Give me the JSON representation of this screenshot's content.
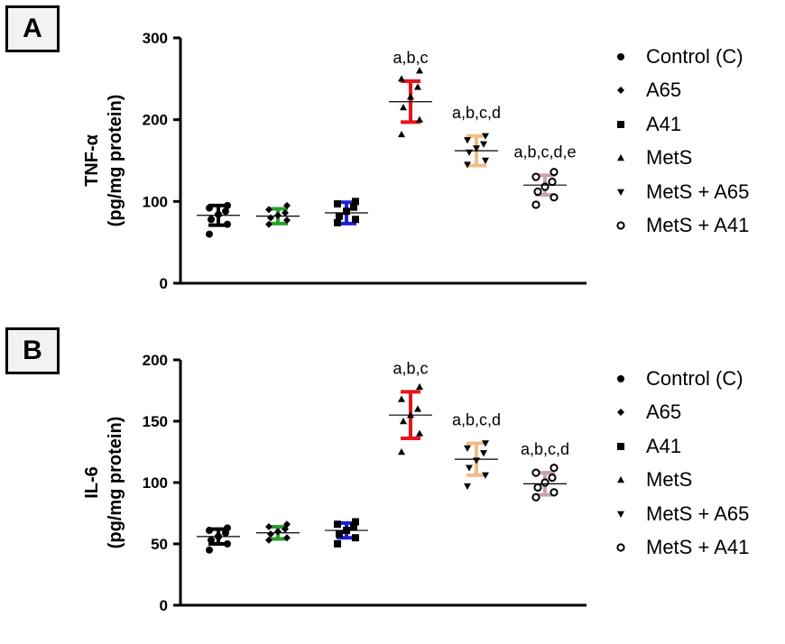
{
  "colors": {
    "control": "#000000",
    "a65": "#2ca02c",
    "a41": "#1f1fd6",
    "mets": "#e8141b",
    "mets_a65": "#f2bb87",
    "mets_a41": "#c9a2ad"
  },
  "legend": [
    {
      "label": "Control (C)",
      "marker": "circle"
    },
    {
      "label": "A65",
      "marker": "diamond"
    },
    {
      "label": "A41",
      "marker": "square"
    },
    {
      "label": "MetS",
      "marker": "triangle-up"
    },
    {
      "label": "MetS + A65",
      "marker": "triangle-down"
    },
    {
      "label": "MetS + A41",
      "marker": "open-circle"
    }
  ],
  "chart_data": [
    {
      "type": "scatter",
      "panel": "A",
      "ylabel_line1": "TNF-α",
      "ylabel_line2": "(pg/mg protein)",
      "ylim": [
        0,
        300
      ],
      "yticks": [
        0,
        100,
        200,
        300
      ],
      "groups": [
        {
          "name": "Control (C)",
          "points": [
            60,
            72,
            78,
            84,
            88,
            92,
            95
          ],
          "mean": 83,
          "sd": 12,
          "annotation": ""
        },
        {
          "name": "A65",
          "points": [
            72,
            77,
            80,
            83,
            86,
            90,
            95
          ],
          "mean": 82,
          "sd": 9,
          "annotation": ""
        },
        {
          "name": "A41",
          "points": [
            74,
            78,
            82,
            88,
            93,
            97,
            100
          ],
          "mean": 86,
          "sd": 13,
          "annotation": ""
        },
        {
          "name": "MetS",
          "points": [
            182,
            200,
            215,
            228,
            240,
            250,
            260
          ],
          "mean": 222,
          "sd": 25,
          "annotation": "a,b,c"
        },
        {
          "name": "MetS + A65",
          "points": [
            145,
            150,
            160,
            165,
            170,
            175,
            180
          ],
          "mean": 162,
          "sd": 18,
          "annotation": "a,b,c,d"
        },
        {
          "name": "MetS + A41",
          "points": [
            96,
            105,
            112,
            118,
            124,
            130,
            136
          ],
          "mean": 120,
          "sd": 12,
          "annotation": "a,b,c,d,e"
        }
      ]
    },
    {
      "type": "scatter",
      "panel": "B",
      "ylabel_line1": "IL-6",
      "ylabel_line2": "(pg/mg protein)",
      "ylim": [
        0,
        200
      ],
      "yticks": [
        0,
        50,
        100,
        150,
        200
      ],
      "groups": [
        {
          "name": "Control (C)",
          "points": [
            45,
            50,
            53,
            56,
            59,
            61,
            63
          ],
          "mean": 56,
          "sd": 6,
          "annotation": ""
        },
        {
          "name": "A65",
          "points": [
            53,
            55,
            58,
            60,
            62,
            64,
            66
          ],
          "mean": 59,
          "sd": 5,
          "annotation": ""
        },
        {
          "name": "A41",
          "points": [
            50,
            55,
            58,
            61,
            64,
            66,
            68
          ],
          "mean": 61,
          "sd": 6,
          "annotation": ""
        },
        {
          "name": "MetS",
          "points": [
            125,
            140,
            150,
            155,
            160,
            168,
            178
          ],
          "mean": 155,
          "sd": 19,
          "annotation": "a,b,c"
        },
        {
          "name": "MetS + A65",
          "points": [
            97,
            106,
            112,
            118,
            124,
            128,
            132
          ],
          "mean": 119,
          "sd": 13,
          "annotation": "a,b,c,d"
        },
        {
          "name": "MetS + A41",
          "points": [
            88,
            92,
            96,
            100,
            104,
            108,
            112
          ],
          "mean": 99,
          "sd": 9,
          "annotation": "a,b,c,d"
        }
      ]
    }
  ]
}
